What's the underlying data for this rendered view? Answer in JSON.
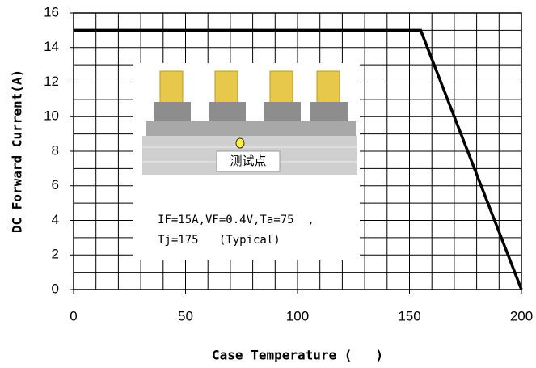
{
  "chart_data": {
    "type": "line",
    "xlabel": "Case Temperature (   )",
    "ylabel": "DC Forward Current(A)",
    "x": [
      0,
      155,
      200
    ],
    "series": [
      {
        "name": "IF",
        "color": "#000000",
        "values": [
          15,
          15,
          0
        ]
      }
    ],
    "xlim": [
      0,
      200
    ],
    "xticks": [
      0,
      50,
      100,
      150,
      200
    ],
    "ylim": [
      0,
      16
    ],
    "yticks": [
      0,
      2,
      4,
      6,
      8,
      10,
      12,
      14,
      16
    ],
    "grid_x": [
      10,
      20,
      30,
      40,
      50,
      60,
      70,
      80,
      90,
      100,
      110,
      120,
      130,
      140,
      150,
      160,
      170,
      180,
      190
    ],
    "grid_y": [
      1,
      2,
      3,
      4,
      5,
      6,
      7,
      8,
      9,
      10,
      11,
      12,
      13,
      14,
      15
    ],
    "grid": true,
    "annotation": [
      "IF=15A,VF=0.4V,Ta=75  ,",
      "Tj=175   (Typical)"
    ],
    "inset_label": "测试点"
  }
}
